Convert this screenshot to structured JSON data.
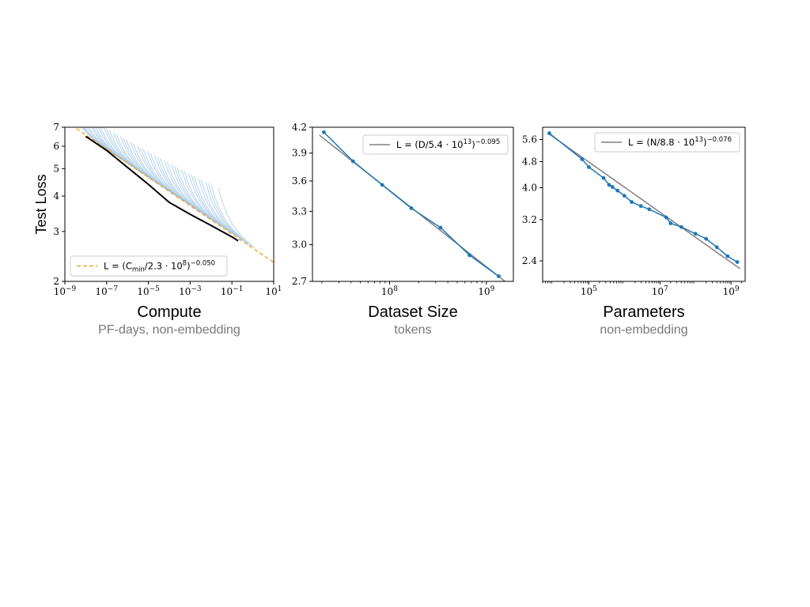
{
  "chart_data": [
    {
      "type": "line",
      "title": "",
      "xlabel": "Compute",
      "xsublabel": "PF-days, non-embedding",
      "ylabel": "Test Loss",
      "xscale": "log",
      "yscale": "log",
      "xlim": [
        1e-09,
        10
      ],
      "ylim": [
        2,
        7
      ],
      "xticks": [
        1e-09,
        1e-07,
        1e-05,
        0.001,
        0.1,
        10
      ],
      "xtick_labels": [
        {
          "base": "10",
          "exp": "−9"
        },
        {
          "base": "10",
          "exp": "−7"
        },
        {
          "base": "10",
          "exp": "−5"
        },
        {
          "base": "10",
          "exp": "−3"
        },
        {
          "base": "10",
          "exp": "−1"
        },
        {
          "base": "10",
          "exp": "1"
        }
      ],
      "yticks": [
        2,
        3,
        4,
        5,
        6,
        7
      ],
      "ytick_labels": [
        "2",
        "3",
        "4",
        "5",
        "6",
        "7"
      ],
      "legend_position": "lower-left",
      "legend": {
        "main": "L = (C",
        "sub": "min",
        "mid": "/2.3 · 10",
        "sup1": "8",
        "end": ")",
        "sup2": "−0.050"
      },
      "colors": {
        "curves": "#8fbadd",
        "frontier": "#000000",
        "fit": "#f5a623"
      },
      "fit": {
        "C0": 230000000.0,
        "alpha": 0.05
      },
      "frontier": {
        "x": [
          1e-08,
          1e-07,
          1e-06,
          1e-05,
          0.0001,
          0.001,
          0.01,
          0.1,
          0.2
        ],
        "y": [
          6.5,
          5.8,
          5.05,
          4.4,
          3.8,
          3.45,
          3.15,
          2.87,
          2.78
        ]
      },
      "curves": {
        "count": 44,
        "description_count_only": true
      }
    },
    {
      "type": "line",
      "title": "",
      "xlabel": "Dataset Size",
      "xsublabel": "tokens",
      "xscale": "log",
      "yscale": "log",
      "xlim": [
        16000000.0,
        1900000000.0
      ],
      "ylim": [
        2.7,
        4.2
      ],
      "xticks": [
        100000000.0,
        1000000000.0
      ],
      "xtick_labels": [
        {
          "base": "10",
          "exp": "8"
        },
        {
          "base": "10",
          "exp": "9"
        }
      ],
      "yticks": [
        2.7,
        3.0,
        3.3,
        3.6,
        3.9,
        4.2
      ],
      "ytick_labels": [
        "2.7",
        "3.0",
        "3.3",
        "3.6",
        "3.9",
        "4.2"
      ],
      "legend_position": "top-right",
      "legend": {
        "main": "L = (D/5.4 · 10",
        "sup1": "13",
        "end": ")",
        "sup2": "−0.095"
      },
      "colors": {
        "data": "#1f77b4",
        "fit": "#808080"
      },
      "fit": {
        "x0": 54000000000000.0,
        "alpha": 0.095
      },
      "series": [
        {
          "x": [
            21000000.0,
            42000000.0,
            84000000.0,
            168000000.0,
            336000000.0,
            670000000.0,
            1340000000.0
          ],
          "y": [
            4.14,
            3.81,
            3.56,
            3.33,
            3.15,
            2.91,
            2.74
          ]
        }
      ]
    },
    {
      "type": "line",
      "title": "",
      "xlabel": "Parameters",
      "xsublabel": "non-embedding",
      "xscale": "log",
      "yscale": "log",
      "xlim": [
        5000.0,
        2500000000.0
      ],
      "ylim": [
        2.08,
        6.1
      ],
      "xticks": [
        100000.0,
        10000000.0,
        1000000000.0
      ],
      "xtick_labels": [
        {
          "base": "10",
          "exp": "5"
        },
        {
          "base": "10",
          "exp": "7"
        },
        {
          "base": "10",
          "exp": "9"
        }
      ],
      "yticks": [
        2.4,
        3.2,
        4.0,
        4.8,
        5.6
      ],
      "ytick_labels": [
        "2.4",
        "3.2",
        "4.0",
        "4.8",
        "5.6"
      ],
      "legend_position": "top-right",
      "legend": {
        "main": "L = (N/8.8 · 10",
        "sup1": "13",
        "end": ")",
        "sup2": "−0.076"
      },
      "colors": {
        "data": "#1f77b4",
        "fit": "#808080"
      },
      "fit": {
        "x0": 88000000000000.0,
        "alpha": 0.076
      },
      "series": [
        {
          "x": [
            7700.0,
            64000.0,
            100000.0,
            260000.0,
            370000.0,
            460000.0,
            640000.0,
            1000000.0,
            1600000.0,
            2900000.0,
            5000000.0,
            15000000.0,
            20000000.0,
            40000000.0,
            100000000.0,
            200000000.0,
            400000000.0,
            800000000.0,
            1500000000.0
          ],
          "y": [
            5.85,
            4.88,
            4.62,
            4.28,
            4.08,
            4.02,
            3.92,
            3.78,
            3.62,
            3.52,
            3.44,
            3.25,
            3.12,
            3.04,
            2.9,
            2.8,
            2.64,
            2.48,
            2.38
          ]
        }
      ]
    }
  ]
}
